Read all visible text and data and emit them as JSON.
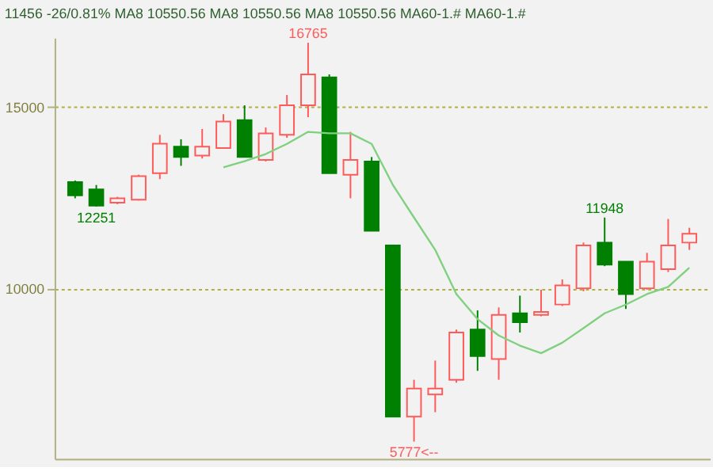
{
  "chart_data": {
    "type": "candlestick",
    "annotations": [
      "11456 -26/0.81%",
      "MA8 10550.56",
      "MA8 10550.56",
      "MA8 10550.56",
      "MA60-1.#",
      "MA60-1.#",
      {
        "text": "16765",
        "y": 16765
      },
      {
        "text": "12251",
        "y": 12251
      },
      {
        "text": "5777<--",
        "y": 5777
      },
      {
        "text": "11948",
        "y": 11948
      }
    ],
    "categories": [
      null,
      null,
      null,
      null,
      null,
      null,
      null,
      null,
      null,
      null,
      null,
      null,
      null,
      null,
      null,
      null,
      null,
      null,
      null,
      null,
      null,
      null,
      null,
      null,
      null,
      null,
      null,
      null,
      null,
      null
    ],
    "ohlc": [
      [
        12927,
        12970,
        12480,
        12561
      ],
      [
        12724,
        12846,
        12251,
        12276
      ],
      [
        12358,
        12520,
        12317,
        12480
      ],
      [
        12439,
        13130,
        12419,
        13090
      ],
      [
        13171,
        14228,
        13008,
        13984
      ],
      [
        13902,
        14106,
        13374,
        13618
      ],
      [
        13659,
        14390,
        13577,
        13902
      ],
      [
        13862,
        14797,
        13862,
        14594
      ],
      [
        14634,
        15041,
        13618,
        13618
      ],
      [
        13537,
        14431,
        13496,
        14268
      ],
      [
        14228,
        15325,
        14146,
        15041
      ],
      [
        15041,
        16765,
        14715,
        15894
      ],
      [
        15813,
        15894,
        13171,
        13171
      ],
      [
        13130,
        14309,
        12480,
        13537
      ],
      [
        13496,
        13618,
        11585,
        11585
      ],
      [
        11179,
        11179,
        6463,
        6463
      ],
      [
        6463,
        7480,
        5777,
        7236
      ],
      [
        7073,
        8008,
        6585,
        7236
      ],
      [
        7480,
        8862,
        7398,
        8781
      ],
      [
        8862,
        9390,
        7724,
        8130
      ],
      [
        8049,
        9472,
        7480,
        9268
      ],
      [
        9309,
        9797,
        8781,
        9065
      ],
      [
        9268,
        9959,
        9228,
        9350
      ],
      [
        9553,
        10244,
        9512,
        10081
      ],
      [
        10000,
        11260,
        9919,
        11179
      ],
      [
        11260,
        11948,
        10610,
        10650
      ],
      [
        10732,
        10732,
        9431,
        9837
      ],
      [
        10000,
        10976,
        9959,
        10732
      ],
      [
        10528,
        11910,
        10447,
        11179
      ],
      [
        11260,
        11667,
        11057,
        11504
      ]
    ],
    "colors": [
      "#008000",
      "#008000",
      "#ff5a5a",
      "#ff5a5a",
      "#ff5a5a",
      "#008000",
      "#ff5a5a",
      "#ff5a5a",
      "#008000",
      "#ff5a5a",
      "#ff5a5a",
      "#ff5a5a",
      "#008000",
      "#ff5a5a",
      "#008000",
      "#008000",
      "#ff5a5a",
      "#ff5a5a",
      "#ff5a5a",
      "#008000",
      "#ff5a5a",
      "#008000",
      "#ff5a5a",
      "#ff5a5a",
      "#ff5a5a",
      "#008000",
      "#008000",
      "#ff5a5a",
      "#ff5a5a",
      "#ff5a5a"
    ],
    "series": [
      {
        "type": "line",
        "color": "#7fd07f",
        "values": [
          null,
          null,
          null,
          null,
          null,
          null,
          null,
          13330,
          13500,
          13700,
          13980,
          14310,
          14270,
          14270,
          13980,
          12850,
          11950,
          11060,
          9840,
          9150,
          8700,
          8420,
          8210,
          8500,
          8900,
          9310,
          9550,
          9840,
          10040,
          10570
        ]
      }
    ],
    "ylim": [
      5300,
      16900
    ],
    "yticks": [
      10000,
      15000
    ],
    "grid": "y"
  }
}
